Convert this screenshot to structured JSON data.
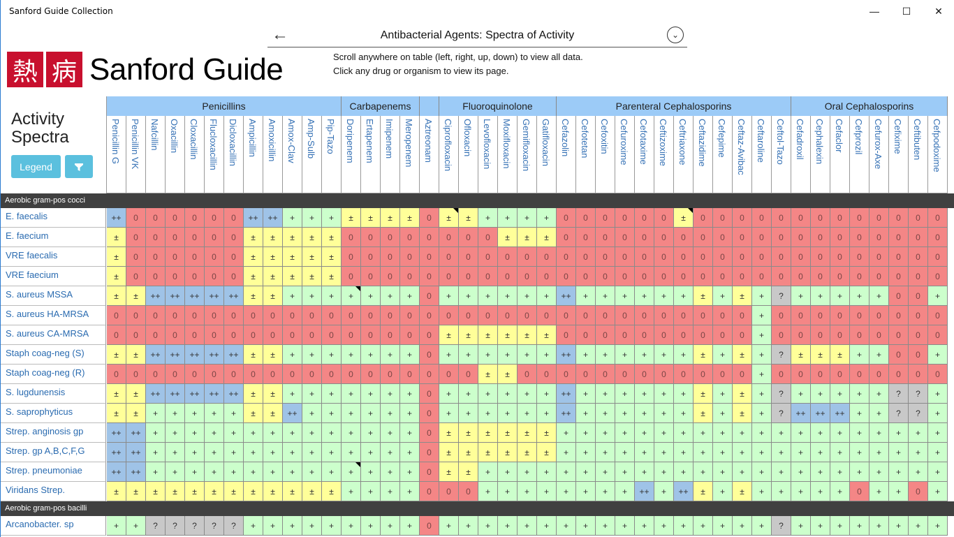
{
  "window": {
    "title": "Sanford Guide Collection",
    "minimize": "—",
    "maximize": "☐",
    "close": "✕"
  },
  "logo": {
    "kanji1": "熱",
    "kanji2": "病",
    "text": "Sanford Guide"
  },
  "nav": {
    "back": "←",
    "title": "Antibacterial Agents: Spectra of Activity",
    "chevron": "⌄"
  },
  "instructions": [
    "Scroll anywhere on table (left, right, up, down) to view all data.",
    "Click any drug or organism to view its page."
  ],
  "panel": {
    "title_line1": "Activity",
    "title_line2": "Spectra",
    "legend": "Legend",
    "filter_icon": "filter-icon"
  },
  "colors": {
    "++": "#9fc3e7",
    "+": "#ccffcc",
    "±": "#ffff99",
    "0": "#f48686",
    "?": "#c8c8c8"
  },
  "groups": [
    {
      "name": "Penicillins",
      "count": 12
    },
    {
      "name": "Carbapenems",
      "count": 4
    },
    {
      "name": "",
      "count": 1
    },
    {
      "name": "Fluoroquinolone",
      "count": 6
    },
    {
      "name": "Parenteral Cephalosporins",
      "count": 12
    },
    {
      "name": "Oral Cephalosporins",
      "count": 8
    }
  ],
  "columns": [
    "Penicillin G",
    "Penicillin VK",
    "Nafcillin",
    "Oxacillin",
    "Cloxacillin",
    "Flucloxacillin",
    "Dicloxacillin",
    "Ampicillin",
    "Amoxicillin",
    "Amox-Clav",
    "Amp-Sulb",
    "Pip-Tazo",
    "Doripenem",
    "Ertapenem",
    "Imipenem",
    "Meropenem",
    "Aztreonam",
    "Ciprofloxacin",
    "Ofloxacin",
    "Levofloxacin",
    "Moxifloxacin",
    "Gemifloxacin",
    "Gatifloxacin",
    "Cefazolin",
    "Cefotetan",
    "Cefoxitin",
    "Cefuroxime",
    "Cefotaxime",
    "Ceftizoxime",
    "Ceftriaxone",
    "Ceftazidime",
    "Cefepime",
    "Ceftaz-Avibac",
    "Ceftaroline",
    "Ceftol-Tazo",
    "Cefadroxil",
    "Cephalexin",
    "Cefaclor",
    "Cefprozil",
    "Cefurox-Axe",
    "Cefixime",
    "Ceftibuten",
    "Cefpodoxime"
  ],
  "sections": [
    {
      "name": "Aerobic gram-pos cocci",
      "rows": [
        {
          "organism": "E. faecalis",
          "values": "++ 0 0 0 0 0 0 ++ ++ + + + ± ± ± ± 0 ± ± + + + + 0 0 0 0 0 0 ± 0 0 0 0 0 0 0 0 0 0 0 0 0",
          "marks": [
            17,
            29
          ]
        },
        {
          "organism": "E. faecium",
          "values": "± 0 0 0 0 0 0 ± ± ± ± ± 0 0 0 0 0 0 0 0 ± ± ± 0 0 0 0 0 0 0 0 0 0 0 0 0 0 0 0 0 0 0 0"
        },
        {
          "organism": "VRE faecalis",
          "values": "± 0 0 0 0 0 0 ± ± ± ± ± 0 0 0 0 0 0 0 0 0 0 0 0 0 0 0 0 0 0 0 0 0 0 0 0 0 0 0 0 0 0 0"
        },
        {
          "organism": "VRE faecium",
          "values": "± 0 0 0 0 0 0 ± ± ± ± ± 0 0 0 0 0 0 0 0 0 0 0 0 0 0 0 0 0 0 0 0 0 0 0 0 0 0 0 0 0 0 0"
        },
        {
          "organism": "S. aureus MSSA",
          "values": "± ± ++ ++ ++ ++ ++ ± ± + + + + + + + 0 + + + + + + ++ + + + + + + ± + ± + ? + + + + + 0 0 +",
          "marks": [
            12
          ]
        },
        {
          "organism": "S. aureus HA-MRSA",
          "values": "0 0 0 0 0 0 0 0 0 0 0 0 0 0 0 0 0 0 0 0 0 0 0 0 0 0 0 0 0 0 0 0 0 + 0 0 0 0 0 0 0 0 0"
        },
        {
          "organism": "S. aureus CA-MRSA",
          "values": "0 0 0 0 0 0 0 0 0 0 0 0 0 0 0 0 0 ± ± ± ± ± ± 0 0 0 0 0 0 0 0 0 0 + 0 0 0 0 0 0 0 0 0"
        },
        {
          "organism": "Staph coag-neg (S)",
          "values": "± ± ++ ++ ++ ++ ++ ± ± + + + + + + + 0 + + + + + + ++ + + + + + + ± + ± + ? ± ± ± + + 0 0 +"
        },
        {
          "organism": "Staph coag-neg (R)",
          "values": "0 0 0 0 0 0 0 0 0 0 0 0 0 0 0 0 0 0 0 ± ± 0 0 0 0 0 0 0 0 0 0 0 0 + 0 0 0 0 0 0 0 0 0"
        },
        {
          "organism": "S. lugdunensis",
          "values": "± ± ++ ++ ++ ++ ++ ± ± + + + + + + + 0 + + + + + + ++ + + + + + + ± + ± + ? + + + + + ? ? +"
        },
        {
          "organism": "S. saprophyticus",
          "values": "± ± + + + + + ± ± ++ + + + + + + 0 + + + + + + ++ + + + + + + ± + ± + ? ++ ++ ++ + + ? ? +"
        },
        {
          "organism": "Strep. anginosis gp",
          "values": "++ ++ + + + + + + + + + + + + + + 0 ± ± ± ± ± ± + + + + + + + + + + + + + + + + + + + +"
        },
        {
          "organism": "Strep. gp A,B,C,F,G",
          "values": "++ ++ + + + + + + + + + + + + + + 0 ± ± ± ± ± ± + + + + + + + + + + + + + + + + + + + +"
        },
        {
          "organism": "Strep. pneumoniae",
          "values": "++ ++ + + + + + + + + + + + + + + 0 ± ± + + + + + + + + + + + + + + + + + + + + + + + +",
          "marks": [
            12
          ]
        },
        {
          "organism": "Viridans Strep.",
          "values": "± ± ± ± ± ± ± ± ± ± ± ± + + + + 0 0 0 + + + + + + + + ++ + ++ ± + ± + + + + + 0 + + 0 +"
        }
      ]
    },
    {
      "name": "Aerobic gram-pos bacilli",
      "rows": [
        {
          "organism": "Arcanobacter. sp",
          "values": "+ + ? ? ? ? ? + + + + + + + + + 0 + + + + + + + + + + + + + + + + + ? + + + + + + + +"
        }
      ]
    }
  ]
}
